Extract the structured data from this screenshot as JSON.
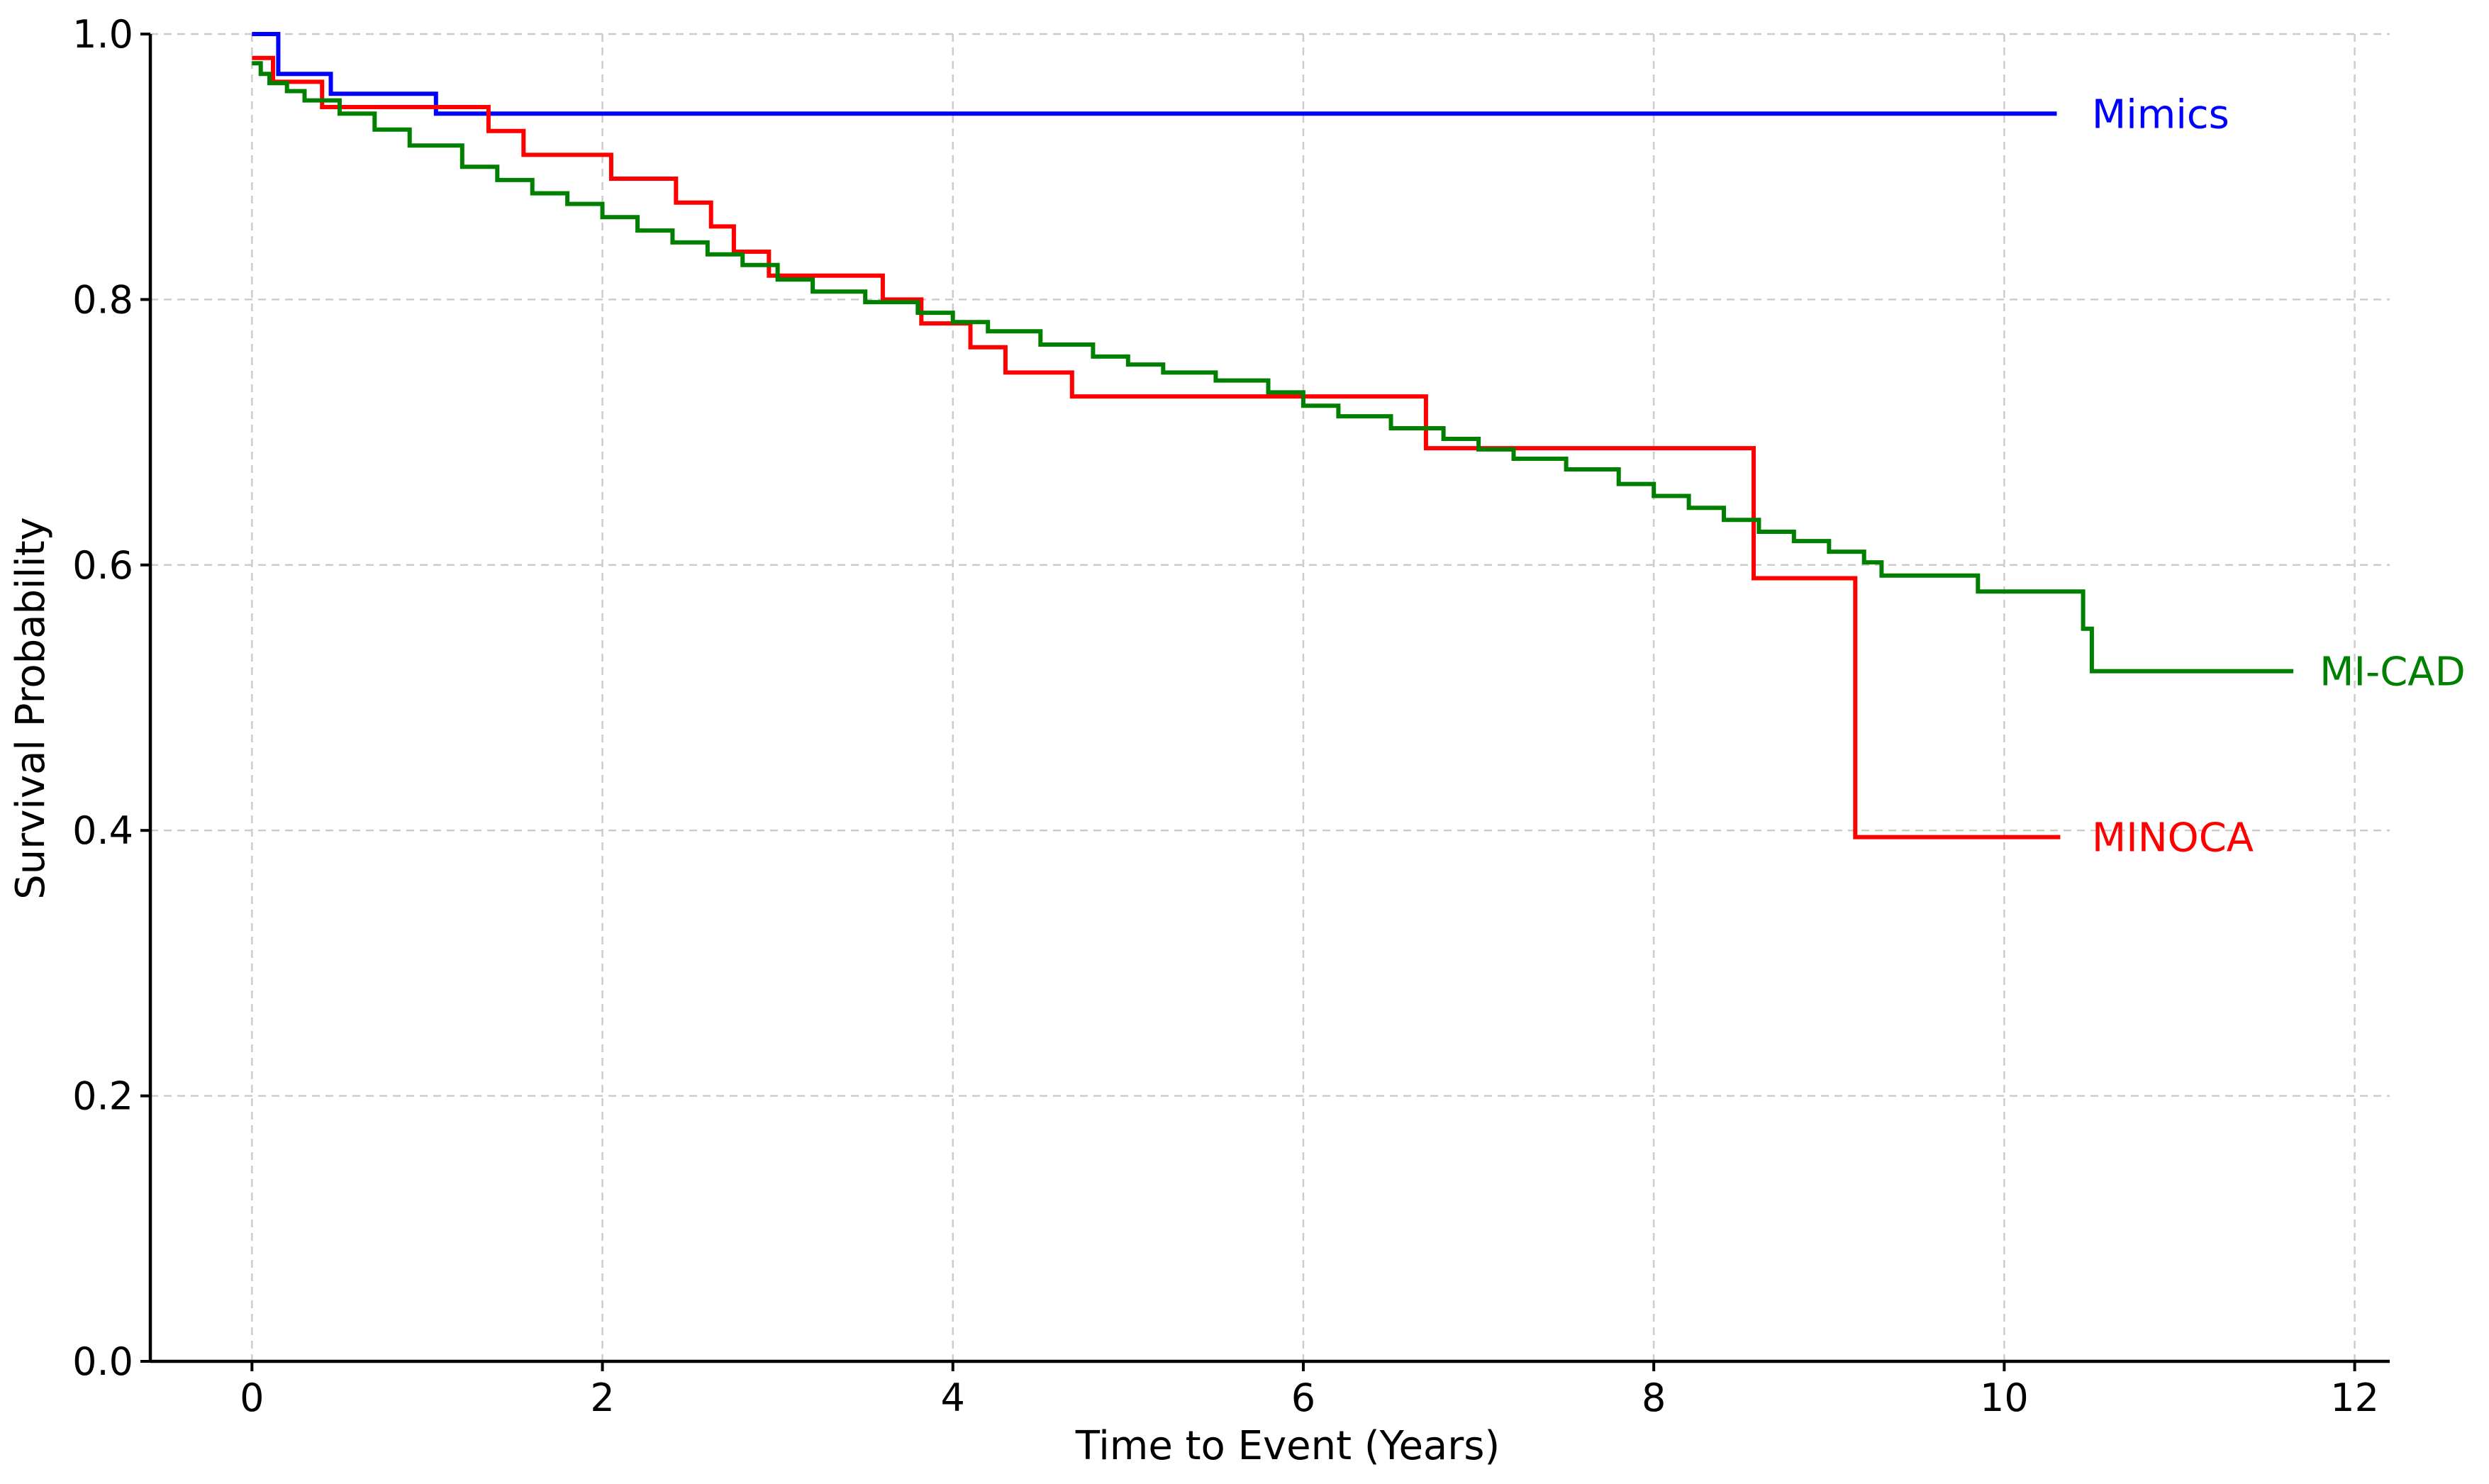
{
  "chart_data": {
    "type": "line",
    "step": true,
    "xlabel": "Time to Event (Years)",
    "ylabel": "Survival Probability",
    "xlim": [
      -0.58,
      12.2
    ],
    "ylim": [
      0.0,
      1.0
    ],
    "x_ticks": [
      0,
      2,
      4,
      6,
      8,
      10,
      12
    ],
    "y_ticks": [
      0.0,
      0.2,
      0.4,
      0.6,
      0.8,
      1.0
    ],
    "x_tick_labels": [
      "0",
      "2",
      "4",
      "6",
      "8",
      "10",
      "12"
    ],
    "y_tick_labels": [
      "0.0",
      "0.2",
      "0.4",
      "0.6",
      "0.8",
      "1.0"
    ],
    "grid": true,
    "series": [
      {
        "name": "Mimics",
        "color": "#0000ff",
        "label_at": [
          10.5,
          0.94
        ],
        "x": [
          0,
          0.15,
          0.45,
          1.05,
          10.3
        ],
        "y": [
          1.0,
          0.97,
          0.955,
          0.94,
          0.94
        ]
      },
      {
        "name": "MINOCA",
        "color": "#ff0000",
        "label_at": [
          10.5,
          0.395
        ],
        "x": [
          0,
          0.12,
          0.4,
          1.35,
          1.55,
          2.05,
          2.42,
          2.62,
          2.75,
          2.95,
          3.6,
          3.82,
          4.1,
          4.3,
          4.68,
          6.7,
          8.57,
          9.15,
          10.32
        ],
        "y": [
          0.982,
          0.964,
          0.945,
          0.927,
          0.909,
          0.891,
          0.873,
          0.855,
          0.836,
          0.818,
          0.8,
          0.782,
          0.764,
          0.745,
          0.727,
          0.688,
          0.59,
          0.395,
          0.395
        ]
      },
      {
        "name": "MI-CAD",
        "color": "#008000",
        "label_at": [
          11.8,
          0.52
        ],
        "x": [
          0,
          0.05,
          0.1,
          0.2,
          0.3,
          0.5,
          0.7,
          0.9,
          1.2,
          1.4,
          1.6,
          1.8,
          2.0,
          2.2,
          2.4,
          2.6,
          2.8,
          3.0,
          3.2,
          3.5,
          3.8,
          4.0,
          4.2,
          4.5,
          4.8,
          5.0,
          5.2,
          5.5,
          5.8,
          6.0,
          6.2,
          6.5,
          6.8,
          7.0,
          7.2,
          7.5,
          7.8,
          8.0,
          8.2,
          8.4,
          8.6,
          8.8,
          9.0,
          9.2,
          9.3,
          9.85,
          10.45,
          10.5,
          11.65
        ],
        "y": [
          0.978,
          0.97,
          0.963,
          0.957,
          0.95,
          0.94,
          0.928,
          0.916,
          0.9,
          0.89,
          0.88,
          0.872,
          0.862,
          0.852,
          0.843,
          0.834,
          0.826,
          0.815,
          0.806,
          0.798,
          0.79,
          0.783,
          0.776,
          0.766,
          0.757,
          0.751,
          0.745,
          0.739,
          0.73,
          0.72,
          0.712,
          0.703,
          0.695,
          0.687,
          0.68,
          0.672,
          0.661,
          0.652,
          0.643,
          0.634,
          0.625,
          0.618,
          0.61,
          0.602,
          0.592,
          0.58,
          0.552,
          0.52,
          0.52
        ]
      }
    ]
  }
}
